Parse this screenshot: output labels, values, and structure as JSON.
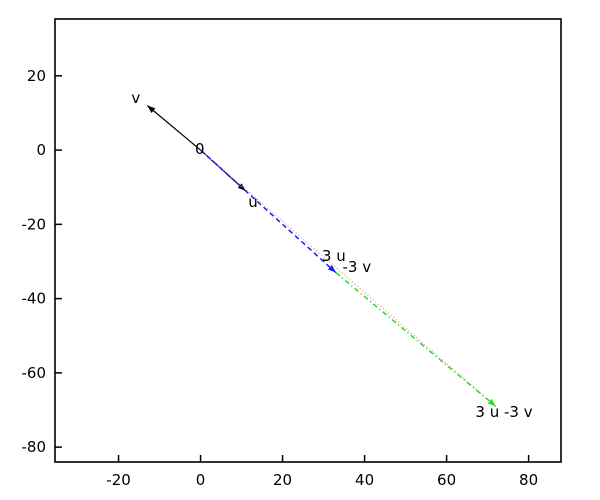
{
  "chart_data": {
    "type": "line",
    "subtype": "vector-quiver-plot",
    "title": "",
    "xlabel": "",
    "ylabel": "",
    "xlim": [
      -35.5,
      87.9
    ],
    "ylim": [
      -84.0,
      35.3
    ],
    "x_ticks": [
      -20,
      0,
      20,
      40,
      60,
      80
    ],
    "y_ticks": [
      20,
      0,
      -20,
      -40,
      -60,
      -80
    ],
    "x_tick_labels": [
      "-20",
      "0",
      "20",
      "40",
      "60",
      "80"
    ],
    "y_tick_labels": [
      "20",
      "0",
      "-20",
      "-40",
      "-60",
      "-80"
    ],
    "grid": false,
    "legend": "none",
    "background_color": "#ffffff",
    "border_color": "#000000",
    "colors": {
      "black_vector": "#000000",
      "blue_vector": "#1a1aff",
      "green_vector": "#22dd22",
      "pink_resultant": "#ffa3a3"
    },
    "vectors": [
      {
        "name": "v",
        "label": "v",
        "from": [
          0,
          0
        ],
        "to": [
          -13,
          12
        ],
        "color": "#000000",
        "style": "solid",
        "width": 1.2,
        "arrow": true
      },
      {
        "name": "u",
        "label": "u",
        "from": [
          0,
          0
        ],
        "to": [
          11,
          -11
        ],
        "color": "#000000",
        "style": "solid",
        "width": 1.2,
        "arrow": true
      },
      {
        "name": "3u-3v",
        "label": "3 u -3 v",
        "from": [
          0,
          0
        ],
        "to": [
          72,
          -69
        ],
        "color": "#ffa3a3",
        "style": "dotted",
        "width": 1.4,
        "arrow": false
      },
      {
        "name": "3u",
        "label": "3 u",
        "from": [
          0,
          0
        ],
        "to": [
          33,
          -33
        ],
        "color": "#1a1aff",
        "style": "dashed",
        "width": 1.5,
        "arrow": true
      },
      {
        "name": "minus-3v",
        "label": "-3 v",
        "from": [
          33,
          -33
        ],
        "to": [
          72,
          -69
        ],
        "color": "#22dd22",
        "style": "dashdot",
        "width": 1.5,
        "arrow": true
      }
    ],
    "point_labels": [
      {
        "text": "v",
        "x": -15.8,
        "y": 14.0
      },
      {
        "text": "0",
        "x": -0.2,
        "y": 0.3
      },
      {
        "text": "u",
        "x": 12.8,
        "y": -14.0
      },
      {
        "text": "3 u",
        "x": 32.5,
        "y": -28.5
      },
      {
        "text": "-3 v",
        "x": 38.1,
        "y": -31.5
      },
      {
        "text": "3 u -3 v",
        "x": 74.0,
        "y": -70.5
      }
    ]
  }
}
